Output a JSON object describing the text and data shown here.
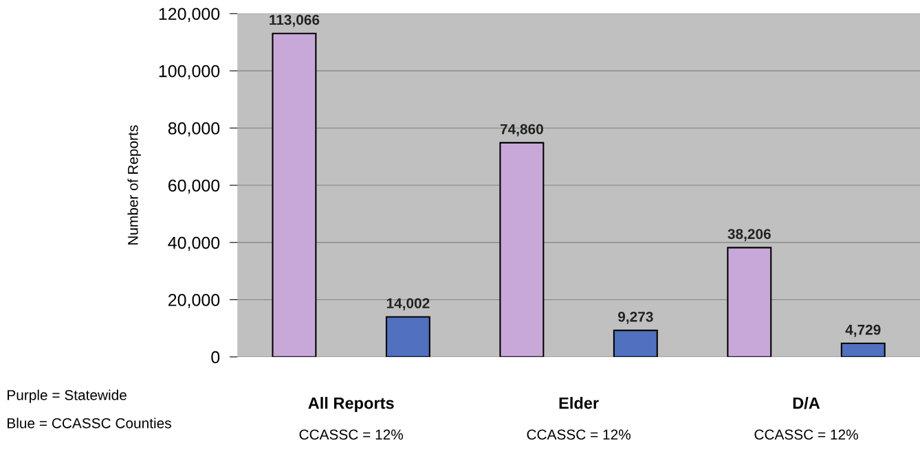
{
  "chart_data": {
    "type": "bar",
    "ylabel": "Number of Reports",
    "categories": [
      "All Reports",
      "Elder",
      "D/A"
    ],
    "series": [
      {
        "color": "#c8a8d8",
        "values": [
          113066,
          74860,
          38206
        ],
        "value_labels": [
          "113,066",
          "74,860",
          "38,206"
        ]
      },
      {
        "color": "#5070c0",
        "values": [
          14002,
          9273,
          4729
        ],
        "value_labels": [
          "14,002",
          "9,273",
          "4,729"
        ]
      }
    ],
    "ylim": [
      0,
      120000
    ],
    "yticks": [
      0,
      {
        "value": 20000,
        "label": "20,000"
      },
      {
        "value": 40000,
        "label": "40,000"
      },
      {
        "value": 60000,
        "label": "60,000"
      },
      {
        "value": 80000,
        "label": "80,000"
      },
      {
        "value": 100000,
        "label": "100,000"
      },
      {
        "value": 120000,
        "label": "120,000"
      }
    ],
    "grid": "y",
    "annotations": [
      "CCASSC = 12%",
      "CCASSC = 12%",
      "CCASSC = 12%",
      "Purple = Statewide",
      "Blue = CCASSC Counties"
    ]
  }
}
